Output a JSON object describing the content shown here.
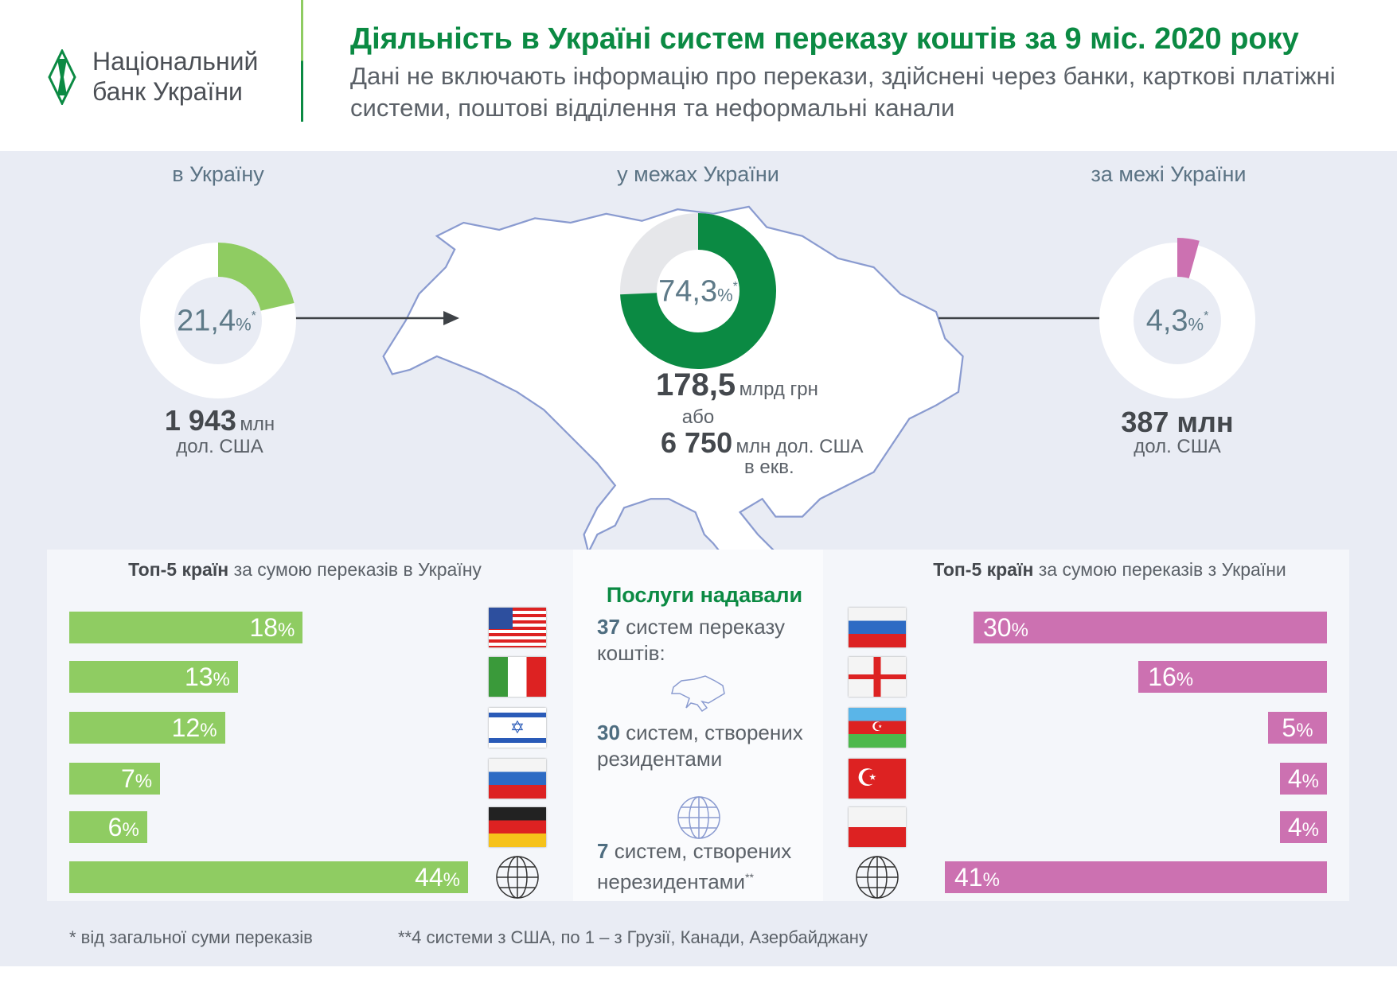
{
  "header": {
    "logo_line1": "Національний",
    "logo_line2": "банк України",
    "title": "Діяльність в Україні систем переказу коштів за 9 міс. 2020 року",
    "subtitle": "Дані не включають інформацію про перекази, здійснені через банки, карткові платіжні системи, поштові відділення та неформальні канали"
  },
  "sections": {
    "inbound": {
      "title": "в Україну",
      "pct": "21,4",
      "pct_sign": "%",
      "mark": "*",
      "amount": "1 943",
      "amount_unit": "млн",
      "currency": "дол. США"
    },
    "domestic": {
      "title": "у межах України",
      "pct": "74,3",
      "pct_sign": "%",
      "mark": "*",
      "amount": "178,5",
      "amount_unit": "млрд грн",
      "or": "або",
      "amount2": "6 750",
      "amount2_unit": "млн дол. США",
      "equiv": "в екв."
    },
    "outbound": {
      "title": "за межі України",
      "pct": "4,3",
      "pct_sign": "%",
      "mark": "*",
      "amount": "387 млн",
      "currency": "дол. США"
    }
  },
  "top_in": {
    "title_bold": "Топ-5 країн",
    "title_rest": " за сумою переказів в Україну"
  },
  "top_out": {
    "title_bold": "Топ-5 країн",
    "title_rest": " за сумою переказів з України"
  },
  "services": {
    "title": "Послуги надавали",
    "total_num": "37",
    "total_text": " систем переказу коштів:",
    "res_num": "30",
    "res_text": " систем, створених резидентами",
    "nonres_num": "7",
    "nonres_text": " систем, створених нерезидентами",
    "nonres_mark": "**"
  },
  "footnotes": {
    "f1": "* від загальної суми переказів",
    "f2": "**4 системи з США, по 1 – з Грузії, Канади, Азербайджану"
  },
  "colors": {
    "green": "#0b8a43",
    "light_green": "#8fcc62",
    "pink": "#cc71b1"
  },
  "chart_data": [
    {
      "type": "pie",
      "name": "donuts",
      "values": [
        {
          "label": "в Україну",
          "value": 21.4,
          "color": "#8fcc62"
        },
        {
          "label": "у межах України",
          "value": 74.3,
          "color": "#0b8a43"
        },
        {
          "label": "за межі України",
          "value": 4.3,
          "color": "#cc71b1"
        }
      ]
    },
    {
      "type": "bar",
      "orientation": "horizontal",
      "categories": [
        "USA",
        "Italy",
        "Israel",
        "Russia",
        "Germany",
        "other-world"
      ],
      "values": [
        18,
        13,
        12,
        7,
        6,
        44
      ],
      "labels": [
        "18",
        "13",
        "12",
        "7",
        "6",
        "44"
      ],
      "color": "#8fcc62"
    },
    {
      "type": "bar",
      "orientation": "horizontal",
      "categories": [
        "Russia",
        "Georgia",
        "Azerbaijan",
        "Turkey",
        "Poland",
        "other-world"
      ],
      "values": [
        30,
        16,
        5,
        4,
        4,
        41
      ],
      "labels": [
        "30",
        "16",
        "5",
        "4",
        "4",
        "41"
      ],
      "color": "#cc71b1"
    }
  ]
}
